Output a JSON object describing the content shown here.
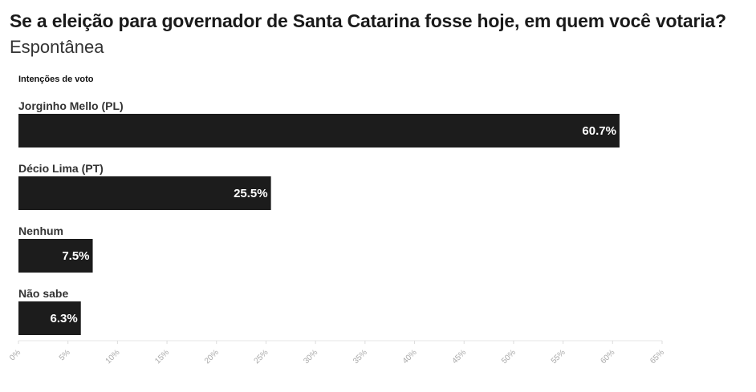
{
  "title": "Se a eleição para governador de Santa Catarina fosse hoje, em quem você votaria?",
  "subtitle": "Espontânea",
  "colors": {
    "bar": "#1c1c1c",
    "label_inside": "#ffffff",
    "tick": "#aaaaaa",
    "category": "#333333"
  },
  "chart_data": {
    "type": "bar",
    "orientation": "horizontal",
    "legend_label": "Intenções de voto",
    "categories": [
      "Jorginho Mello (PL)",
      "Décio Lima (PT)",
      "Nenhum",
      "Não sabe"
    ],
    "values": [
      60.7,
      25.5,
      7.5,
      6.3
    ],
    "value_labels": [
      "60.7%",
      "25.5%",
      "7.5%",
      "6.3%"
    ],
    "xlim": [
      0,
      65
    ],
    "x_ticks": [
      0,
      5,
      10,
      15,
      20,
      25,
      30,
      35,
      40,
      45,
      50,
      55,
      60,
      65
    ],
    "x_tick_labels": [
      "0%",
      "5%",
      "10%",
      "15%",
      "20%",
      "25%",
      "30%",
      "35%",
      "40%",
      "45%",
      "50%",
      "55%",
      "60%",
      "65%"
    ],
    "grid": false
  }
}
